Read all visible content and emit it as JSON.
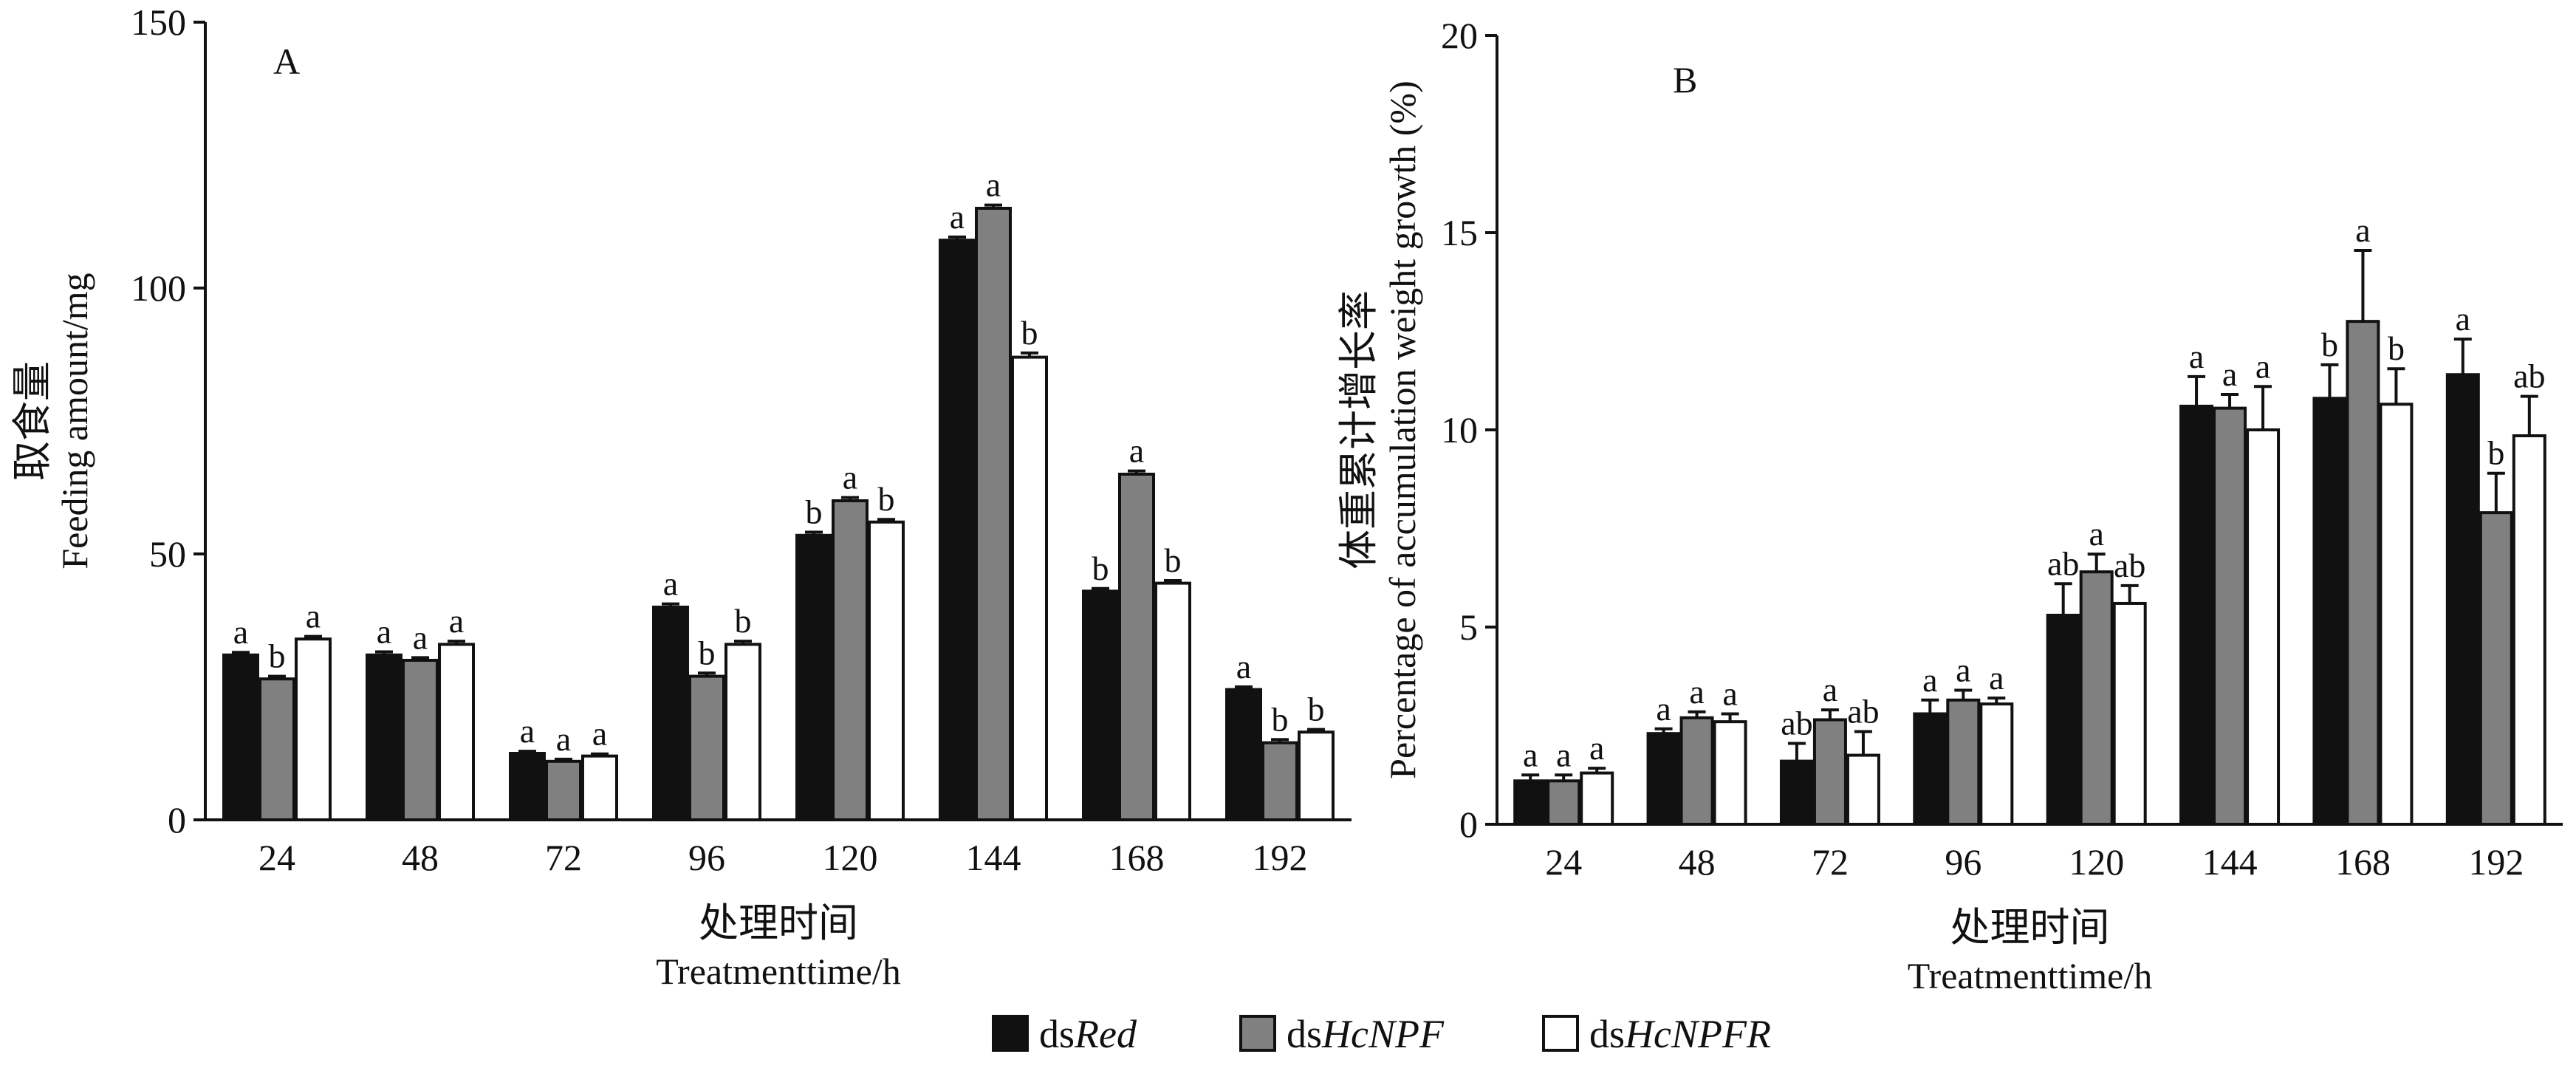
{
  "figure_title": "",
  "legend": [
    {
      "prefix": "ds",
      "name": "Red",
      "color": "#111111"
    },
    {
      "prefix": "ds",
      "name": "HcNPF",
      "color": "#808080"
    },
    {
      "prefix": "ds",
      "name": "HcNPFR",
      "color": "#ffffff"
    }
  ],
  "chart_data": [
    {
      "type": "bar",
      "panel": "A",
      "categories": [
        "24",
        "48",
        "72",
        "96",
        "120",
        "144",
        "168",
        "192"
      ],
      "ylabel_cn": "取食量",
      "ylabel": "Feeding amount/mg",
      "xlabel_cn": "处理时间",
      "xlabel": "Treatmenttime/h",
      "ylim": [
        0,
        150
      ],
      "yticks": [
        "0",
        "50",
        "100",
        "150"
      ],
      "series": [
        {
          "name": "dsRed",
          "values": [
            31,
            31,
            12.5,
            40,
            53.5,
            109,
            43,
            24.5
          ],
          "errors": [
            0.5,
            0.6,
            0.4,
            0.6,
            0.6,
            0.6,
            0.5,
            0.5
          ],
          "letters": [
            "a",
            "a",
            "a",
            "a",
            "b",
            "a",
            "b",
            "a"
          ]
        },
        {
          "name": "dsHcNPF",
          "values": [
            26.5,
            30,
            11,
            27,
            60,
            115,
            65,
            14.5
          ],
          "errors": [
            0.5,
            0.5,
            0.4,
            0.6,
            0.6,
            0.6,
            0.6,
            0.6
          ],
          "letters": [
            "b",
            "a",
            "a",
            "b",
            "a",
            "a",
            "a",
            "b"
          ]
        },
        {
          "name": "dsHcNPFR",
          "values": [
            34,
            33,
            12,
            33,
            56,
            87,
            44.5,
            16.5
          ],
          "errors": [
            0.5,
            0.6,
            0.4,
            0.6,
            0.5,
            0.8,
            0.5,
            0.5
          ],
          "letters": [
            "a",
            "a",
            "a",
            "b",
            "b",
            "b",
            "b",
            "b"
          ]
        }
      ]
    },
    {
      "type": "bar",
      "panel": "B",
      "categories": [
        "24",
        "48",
        "72",
        "96",
        "120",
        "144",
        "168",
        "192"
      ],
      "ylabel_cn": "体重累计增长率",
      "ylabel": "Percentage of accumulation weight growth (%)",
      "xlabel_cn": "处理时间",
      "xlabel": "Treatmenttime/h",
      "ylim": [
        0,
        20
      ],
      "yticks": [
        "0",
        "5",
        "10",
        "15",
        "20"
      ],
      "series": [
        {
          "name": "dsRed",
          "values": [
            1.1,
            2.3,
            1.6,
            2.8,
            5.3,
            10.6,
            10.8,
            11.4
          ],
          "errors": [
            0.15,
            0.12,
            0.45,
            0.35,
            0.8,
            0.75,
            0.85,
            0.9
          ],
          "letters": [
            "a",
            "a",
            "ab",
            "a",
            "ab",
            "a",
            "b",
            "a"
          ]
        },
        {
          "name": "dsHcNPF",
          "values": [
            1.1,
            2.7,
            2.65,
            3.15,
            6.4,
            10.55,
            12.75,
            7.9
          ],
          "errors": [
            0.15,
            0.15,
            0.25,
            0.25,
            0.45,
            0.35,
            1.8,
            1.0
          ],
          "letters": [
            "a",
            "a",
            "a",
            "a",
            "a",
            "a",
            "a",
            "b"
          ]
        },
        {
          "name": "dsHcNPFR",
          "values": [
            1.3,
            2.6,
            1.75,
            3.05,
            5.6,
            10.0,
            10.65,
            9.85
          ],
          "errors": [
            0.12,
            0.2,
            0.6,
            0.15,
            0.45,
            1.1,
            0.9,
            1.0
          ],
          "letters": [
            "a",
            "a",
            "ab",
            "a",
            "ab",
            "a",
            "b",
            "ab"
          ]
        }
      ]
    }
  ]
}
